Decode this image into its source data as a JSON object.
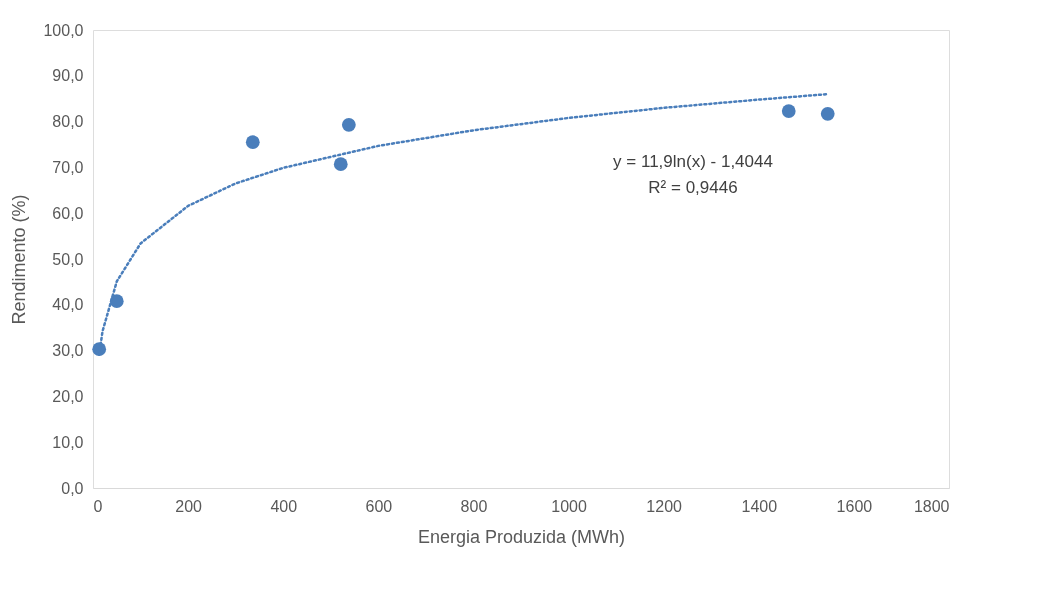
{
  "chart_data": {
    "type": "scatter",
    "xlabel": "Energia Produzida (MWh)",
    "ylabel": "Rendimento (%)",
    "xlim": [
      0,
      1800
    ],
    "xticks": [
      0,
      200,
      400,
      600,
      800,
      1000,
      1200,
      1400,
      1600,
      1800
    ],
    "ylim": [
      0,
      100
    ],
    "yticks": [
      {
        "value": 0,
        "label": "0,0"
      },
      {
        "value": 10,
        "label": "10,0"
      },
      {
        "value": 20,
        "label": "20,0"
      },
      {
        "value": 30,
        "label": "30,0"
      },
      {
        "value": 40,
        "label": "40,0"
      },
      {
        "value": 50,
        "label": "50,0"
      },
      {
        "value": 60,
        "label": "60,0"
      },
      {
        "value": 70,
        "label": "70,0"
      },
      {
        "value": 80,
        "label": "80,0"
      },
      {
        "value": 90,
        "label": "90,0"
      },
      {
        "value": 100,
        "label": "100,0"
      }
    ],
    "grid": false,
    "series": [
      {
        "color": "#4a7ebb",
        "marker": "circle",
        "x": [
          13,
          50,
          336,
          521,
          538,
          1463,
          1545
        ],
        "values": [
          30.3,
          40.8,
          75.5,
          70.7,
          79.3,
          82.3,
          81.7
        ]
      },
      {
        "type": "line",
        "color": "#4a7ebb",
        "line_style": "dotted",
        "x": [
          13,
          20,
          50,
          100,
          200,
          300,
          400,
          600,
          800,
          1000,
          1200,
          1400,
          1545
        ],
        "values": [
          29.1,
          34.2,
          45.1,
          53.4,
          61.6,
          66.5,
          69.9,
          74.7,
          78.1,
          80.8,
          83.0,
          84.8,
          86.0
        ]
      }
    ],
    "annotations": [
      "y = 11,9ln(x) - 1,4044",
      "R² = 0,9446"
    ]
  }
}
